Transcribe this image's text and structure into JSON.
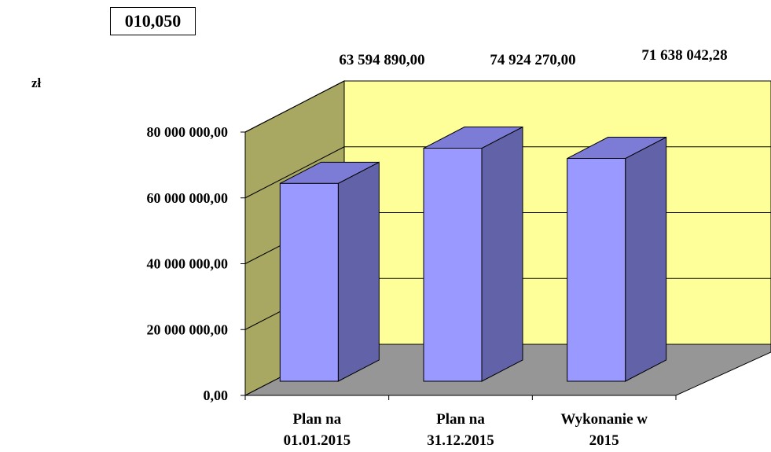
{
  "header": {
    "code": "010,050",
    "unit": "zł"
  },
  "colors": {
    "back_wall": "#ffff99",
    "side_wall": "#a8a862",
    "floor": "#969696",
    "bar_front": "#9999ff",
    "bar_top": "#7c7cd6",
    "bar_side": "#6262a8"
  },
  "chart_data": {
    "type": "bar",
    "style": "3d",
    "categories": [
      [
        "Plan na",
        "01.01.2015"
      ],
      [
        "Plan na",
        "31.12.2015"
      ],
      [
        "Wykonanie w",
        "2015"
      ]
    ],
    "values": [
      63594890.0,
      74924270.0,
      71638042.28
    ],
    "value_labels": [
      "63 594 890,00",
      "74 924 270,00",
      "71 638 042,28"
    ],
    "y_ticks": [
      0,
      20000000,
      40000000,
      60000000,
      80000000
    ],
    "y_tick_labels": [
      "0,00",
      "20 000 000,00",
      "40 000 000,00",
      "60 000 000,00",
      "80 000 000,00"
    ],
    "ylim": [
      0,
      80000000
    ],
    "grid": true,
    "legend": "none"
  }
}
